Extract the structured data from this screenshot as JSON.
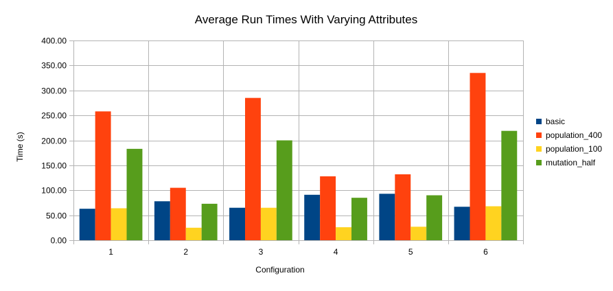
{
  "chart_data": {
    "type": "bar",
    "title": "Average Run Times With Varying Attributes",
    "xlabel": "Configuration",
    "ylabel": "Time (s)",
    "categories": [
      "1",
      "2",
      "3",
      "4",
      "5",
      "6"
    ],
    "ylim": [
      0,
      400
    ],
    "yticks": [
      "0.00",
      "50.00",
      "100.00",
      "150.00",
      "200.00",
      "250.00",
      "300.00",
      "350.00",
      "400.00"
    ],
    "grid": true,
    "legend_position": "right",
    "series": [
      {
        "name": "basic",
        "color": "#004586",
        "values": [
          63,
          78,
          65,
          91,
          93,
          67
        ]
      },
      {
        "name": "population_400",
        "color": "#ff420e",
        "values": [
          258,
          105,
          285,
          128,
          132,
          335
        ]
      },
      {
        "name": "population_100",
        "color": "#ffd320",
        "values": [
          64,
          25,
          65,
          26,
          27,
          68
        ]
      },
      {
        "name": "mutation_half",
        "color": "#579d1c",
        "values": [
          183,
          73,
          200,
          85,
          90,
          219
        ]
      }
    ]
  }
}
